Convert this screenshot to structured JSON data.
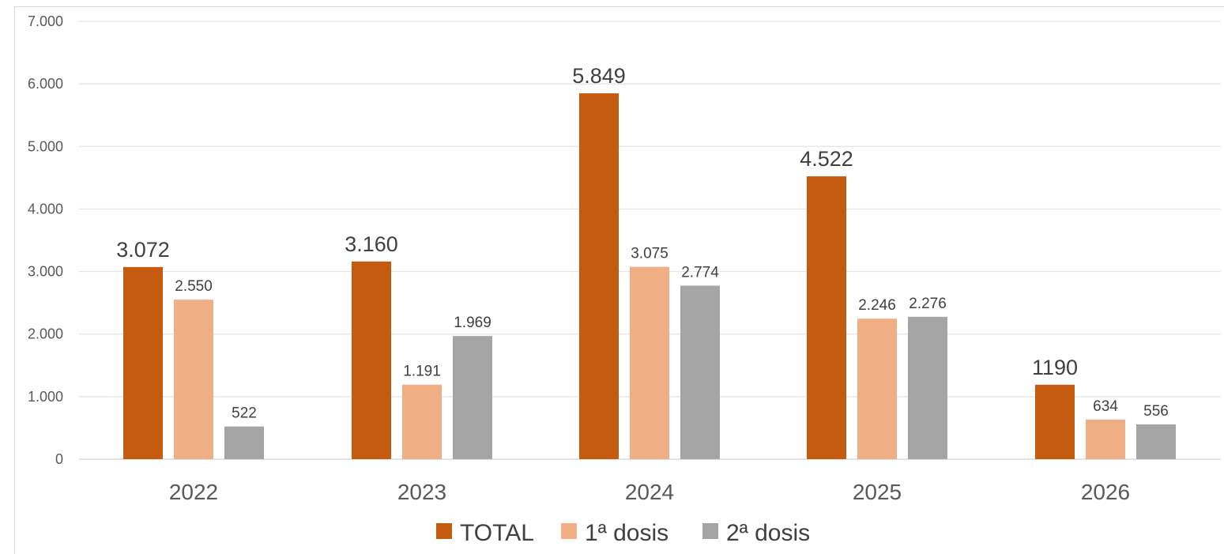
{
  "chart_data": {
    "type": "bar",
    "categories": [
      "2022",
      "2023",
      "2024",
      "2025",
      "2026"
    ],
    "series": [
      {
        "name": "TOTAL",
        "color": "#c55a11",
        "values": [
          3072,
          3160,
          5849,
          4522,
          1190
        ],
        "labels": [
          "3.072",
          "3.160",
          "5.849",
          "4.522",
          "1190"
        ]
      },
      {
        "name": "1ª dosis",
        "color": "#f0ae84",
        "values": [
          2550,
          1191,
          3075,
          2246,
          634
        ],
        "labels": [
          "2.550",
          "1.191",
          "3.075",
          "2.246",
          "634"
        ]
      },
      {
        "name": "2ª dosis",
        "color": "#a5a5a5",
        "values": [
          522,
          1969,
          2774,
          2276,
          556
        ],
        "labels": [
          "522",
          "1.969",
          "2.774",
          "2.276",
          "556"
        ]
      }
    ],
    "ylim": [
      0,
      7000
    ],
    "yticks": [
      0,
      1000,
      2000,
      3000,
      4000,
      5000,
      6000,
      7000
    ],
    "ytick_labels": [
      "0",
      "1.000",
      "2.000",
      "3.000",
      "4.000",
      "5.000",
      "6.000",
      "7.000"
    ],
    "grid": true,
    "legend_position": "bottom",
    "title": "",
    "xlabel": "",
    "ylabel": ""
  }
}
